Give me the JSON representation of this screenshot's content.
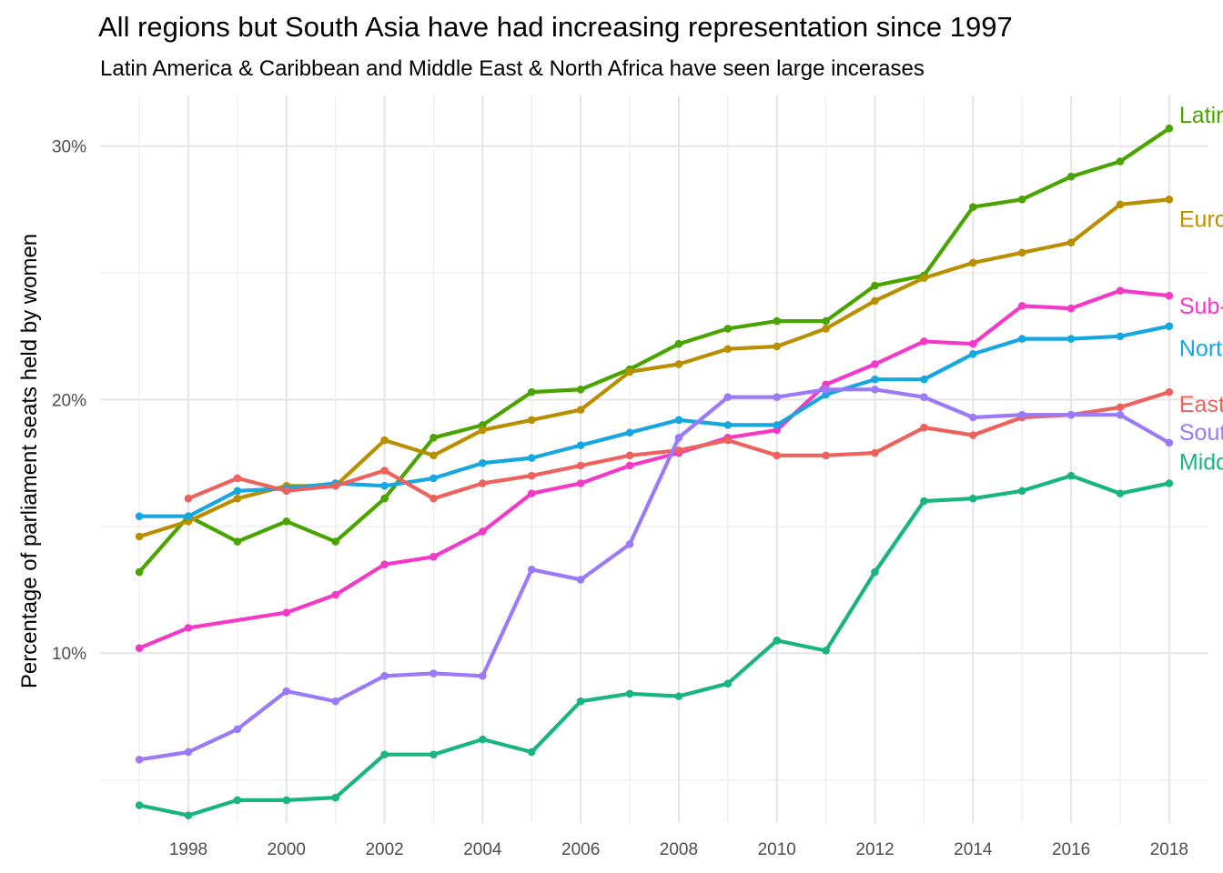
{
  "chart_data": {
    "type": "line",
    "title": "All regions but South Asia have had increasing representation since 1997",
    "subtitle": "Latin America & Caribbean and Middle East & North Africa have seen large incerases",
    "xlabel": "",
    "ylabel": "Percentage of parliament seats held by women",
    "xlim": [
      1996.2,
      2018.8
    ],
    "ylim": [
      3.3,
      32.0
    ],
    "x_ticks": [
      1998,
      2000,
      2002,
      2004,
      2006,
      2008,
      2010,
      2012,
      2014,
      2016,
      2018
    ],
    "x_tick_labels": [
      "1998",
      "2000",
      "2002",
      "2004",
      "2006",
      "2008",
      "2010",
      "2012",
      "2014",
      "2016",
      "2018"
    ],
    "y_ticks": [
      10,
      20,
      30
    ],
    "y_tick_labels": [
      "10%",
      "20%",
      "30%"
    ],
    "y_minor": [
      5,
      15,
      25
    ],
    "grid": true,
    "legend": "direct labels at right end of each line",
    "series": [
      {
        "name": "Latin America & Caribbean",
        "color": "#49A400",
        "x": [
          1997,
          1998,
          1999,
          2000,
          2001,
          2002,
          2003,
          2004,
          2005,
          2006,
          2007,
          2008,
          2009,
          2010,
          2011,
          2012,
          2013,
          2014,
          2015,
          2016,
          2017,
          2018
        ],
        "values": [
          13.2,
          15.4,
          14.4,
          15.2,
          14.4,
          16.1,
          18.5,
          19.0,
          20.3,
          20.4,
          21.2,
          22.2,
          22.8,
          23.1,
          23.1,
          24.5,
          24.9,
          27.6,
          27.9,
          28.8,
          29.4,
          30.7
        ]
      },
      {
        "name": "Europe & Central Asia",
        "color": "#B98F00",
        "x": [
          1997,
          1998,
          1999,
          2000,
          2001,
          2002,
          2003,
          2004,
          2005,
          2006,
          2007,
          2008,
          2009,
          2010,
          2011,
          2012,
          2013,
          2014,
          2015,
          2016,
          2017,
          2018
        ],
        "values": [
          14.6,
          15.2,
          16.1,
          16.6,
          16.6,
          18.4,
          17.8,
          18.8,
          19.2,
          19.6,
          21.1,
          21.4,
          22.0,
          22.1,
          22.8,
          23.9,
          24.8,
          25.4,
          25.8,
          26.2,
          27.7,
          27.9
        ]
      },
      {
        "name": "Sub-Saharan Africa",
        "color": "#F439C8",
        "x": [
          1997,
          1998,
          2000,
          2001,
          2002,
          2003,
          2004,
          2005,
          2006,
          2007,
          2008,
          2009,
          2010,
          2011,
          2012,
          2013,
          2014,
          2015,
          2016,
          2017,
          2018
        ],
        "values": [
          10.2,
          11.0,
          11.6,
          12.3,
          13.5,
          13.8,
          14.8,
          16.3,
          16.7,
          17.4,
          17.9,
          18.5,
          18.8,
          20.6,
          21.4,
          22.3,
          22.2,
          23.7,
          23.6,
          24.3,
          24.1
        ]
      },
      {
        "name": "North America",
        "color": "#16A6E0",
        "x": [
          1997,
          1998,
          1999,
          2000,
          2001,
          2002,
          2003,
          2004,
          2005,
          2006,
          2007,
          2008,
          2009,
          2010,
          2011,
          2012,
          2013,
          2014,
          2015,
          2016,
          2017,
          2018
        ],
        "values": [
          15.4,
          15.4,
          16.4,
          16.5,
          16.7,
          16.6,
          16.9,
          17.5,
          17.7,
          18.2,
          18.7,
          19.2,
          19.0,
          19.0,
          20.2,
          20.8,
          20.8,
          21.8,
          22.4,
          22.4,
          22.5,
          22.9
        ]
      },
      {
        "name": "East Asia & Pacific",
        "color": "#EE625D",
        "x": [
          1998,
          1999,
          2000,
          2001,
          2002,
          2003,
          2004,
          2005,
          2006,
          2007,
          2008,
          2009,
          2010,
          2011,
          2012,
          2013,
          2014,
          2015,
          2016,
          2017,
          2018
        ],
        "values": [
          16.1,
          16.9,
          16.4,
          16.6,
          17.2,
          16.1,
          16.7,
          17.0,
          17.4,
          17.8,
          18.0,
          18.4,
          17.8,
          17.8,
          17.9,
          18.9,
          18.6,
          19.3,
          19.4,
          19.7,
          20.3
        ]
      },
      {
        "name": "South Asia",
        "color": "#9A7AF8",
        "x": [
          1997,
          1998,
          1999,
          2000,
          2001,
          2002,
          2003,
          2004,
          2005,
          2006,
          2007,
          2008,
          2009,
          2010,
          2011,
          2012,
          2013,
          2014,
          2015,
          2016,
          2017,
          2018
        ],
        "values": [
          5.8,
          6.1,
          7.0,
          8.5,
          8.1,
          9.1,
          9.2,
          9.1,
          13.3,
          12.9,
          14.3,
          18.5,
          20.1,
          20.1,
          20.4,
          20.4,
          20.1,
          19.3,
          19.4,
          19.4,
          19.4,
          18.3
        ]
      },
      {
        "name": "Middle East & North Africa",
        "color": "#19B57F",
        "x": [
          1997,
          1998,
          1999,
          2000,
          2001,
          2002,
          2003,
          2004,
          2005,
          2006,
          2007,
          2008,
          2009,
          2010,
          2011,
          2012,
          2013,
          2014,
          2015,
          2016,
          2017,
          2018
        ],
        "values": [
          4.0,
          3.6,
          4.2,
          4.2,
          4.3,
          6.0,
          6.0,
          6.6,
          6.1,
          8.1,
          8.4,
          8.3,
          8.8,
          10.5,
          10.1,
          13.2,
          16.0,
          16.1,
          16.4,
          17.0,
          16.3,
          16.7
        ]
      }
    ]
  }
}
